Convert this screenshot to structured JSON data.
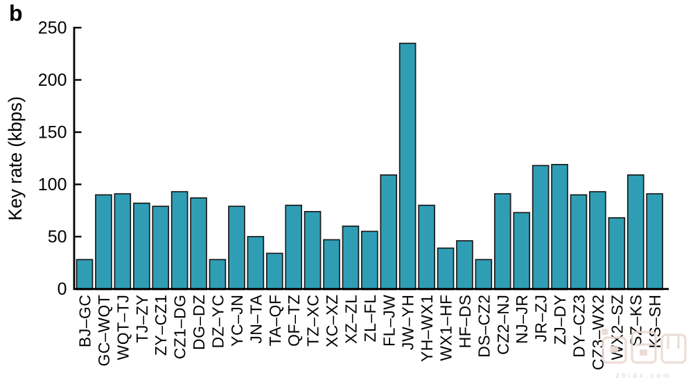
{
  "panel_label": "b",
  "chart_data": {
    "type": "bar",
    "title": "",
    "xlabel": "",
    "ylabel": "Key rate (kbps)",
    "ylim": [
      0,
      250
    ],
    "yticks": [
      0,
      50,
      100,
      150,
      200,
      250
    ],
    "grid": false,
    "legend": null,
    "bar_color": "#2F9EB5",
    "bar_edge_color": "#1A1A1A",
    "axis_color": "#000000",
    "categories": [
      "BJ–GC",
      "GC–WQT",
      "WQT–TJ",
      "TJ–ZY",
      "ZY–CZ1",
      "CZ1–DG",
      "DG–DZ",
      "DZ–YC",
      "YC–JN",
      "JN–TA",
      "TA–QF",
      "QF–TZ",
      "TZ–XC",
      "XC–XZ",
      "XZ–ZL",
      "ZL–FL",
      "FL–JW",
      "JW–YH",
      "YH–WX1",
      "WX1–HF",
      "HF–DS",
      "DS–CZ2",
      "CZ2–NJ",
      "NJ–JR",
      "JR–ZJ",
      "ZJ–DY",
      "DY–CZ3",
      "CZ3–WX2",
      "WX2–SZ",
      "SZ–KS",
      "KS–SH"
    ],
    "values": [
      28,
      90,
      91,
      82,
      79,
      93,
      87,
      28,
      79,
      50,
      34,
      80,
      74,
      47,
      60,
      55,
      109,
      235,
      80,
      39,
      46,
      28,
      91,
      73,
      118,
      119,
      90,
      93,
      68,
      109,
      91
    ]
  },
  "watermark": {
    "logo_text": "智东西",
    "subtext": "zhidx.com"
  }
}
